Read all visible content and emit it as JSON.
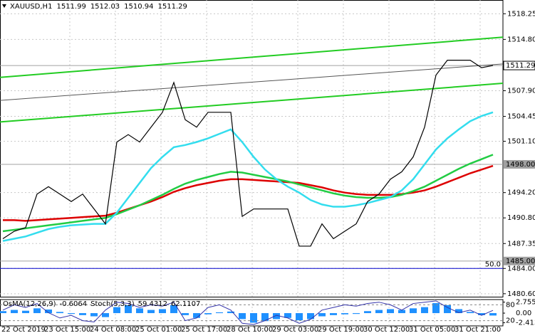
{
  "chart_data": {
    "type": "line",
    "title": "XAUUSD,H1",
    "ohlc": [
      1511.99,
      1512.03,
      1510.94,
      1511.29
    ],
    "categories": [
      "22 Oct 2019",
      null,
      null,
      null,
      "23 Oct 15:00",
      null,
      null,
      null,
      "24 Oct 08:00",
      null,
      null,
      null,
      "25 Oct 01:00",
      null,
      null,
      null,
      "25 Oct 17:00",
      null,
      null,
      null,
      "28 Oct 10:00",
      null,
      null,
      null,
      "29 Oct 03:00",
      null,
      null,
      null,
      "29 Oct 19:00",
      null,
      null,
      null,
      "30 Oct 12:00",
      null,
      null,
      null,
      "31 Oct 05:00",
      null,
      null,
      null,
      "31 Oct 21:00",
      null,
      null,
      null
    ],
    "series": [
      {
        "name": "XAUUSD",
        "color": "#000000",
        "values": [
          1488,
          1489,
          1489.5,
          1494,
          1495,
          1494,
          1493,
          1494,
          1492,
          1490,
          1501,
          1502,
          1501,
          1503,
          1505,
          1509,
          1504,
          1503,
          1505,
          1505,
          1505,
          1491,
          1492,
          1492,
          1492,
          1492,
          1487,
          1487,
          1490,
          1488,
          1489,
          1490,
          1493,
          1494,
          1496,
          1497,
          1499,
          1503,
          1510,
          1512,
          1512,
          1512,
          1511,
          1511.29
        ]
      },
      {
        "color": "#dd0000",
        "values": [
          1490.5,
          1490.5,
          1490.4,
          1490.5,
          1490.6,
          1490.7,
          1490.8,
          1490.9,
          1491.0,
          1491.1,
          1491.5,
          1492.0,
          1492.5,
          1493.0,
          1493.6,
          1494.3,
          1494.8,
          1495.2,
          1495.5,
          1495.8,
          1496.0,
          1496.0,
          1495.9,
          1495.8,
          1495.7,
          1495.6,
          1495.5,
          1495.2,
          1494.9,
          1494.5,
          1494.2,
          1494.0,
          1493.9,
          1493.9,
          1493.9,
          1494.0,
          1494.2,
          1494.5,
          1495.0,
          1495.6,
          1496.2,
          1496.8,
          1497.3,
          1497.8
        ]
      },
      {
        "color": "#22cc44",
        "values": [
          1489.0,
          1489.2,
          1489.4,
          1489.6,
          1489.8,
          1490.0,
          1490.2,
          1490.4,
          1490.6,
          1490.8,
          1491.3,
          1491.9,
          1492.5,
          1493.2,
          1493.9,
          1494.7,
          1495.4,
          1495.9,
          1496.3,
          1496.7,
          1497.0,
          1496.9,
          1496.6,
          1496.3,
          1496.0,
          1495.7,
          1495.3,
          1494.9,
          1494.5,
          1494.1,
          1493.8,
          1493.6,
          1493.5,
          1493.5,
          1493.6,
          1493.9,
          1494.4,
          1495.0,
          1495.8,
          1496.6,
          1497.4,
          1498.1,
          1498.7,
          1499.3
        ]
      },
      {
        "color": "#33ddee",
        "values": [
          1487.7,
          1488.0,
          1488.3,
          1488.8,
          1489.3,
          1489.6,
          1489.8,
          1489.9,
          1490.0,
          1490.0,
          1491.5,
          1493.5,
          1495.5,
          1497.5,
          1499.0,
          1500.3,
          1500.6,
          1501.0,
          1501.5,
          1502.1,
          1502.7,
          1501.0,
          1499.0,
          1497.3,
          1496.0,
          1495.0,
          1494.2,
          1493.2,
          1492.6,
          1492.3,
          1492.3,
          1492.5,
          1492.8,
          1493.2,
          1493.6,
          1494.5,
          1496.0,
          1498.0,
          1500.0,
          1501.5,
          1502.7,
          1503.8,
          1504.5,
          1505.0
        ]
      }
    ],
    "trendlines": [
      {
        "color": "#22cc22",
        "values": [
          1509.7,
          1515.1
        ]
      },
      {
        "color": "#555555",
        "values": [
          1506.6,
          1511.5
        ]
      },
      {
        "color": "#22cc22",
        "values": [
          1503.7,
          1508.9
        ]
      }
    ],
    "levels": [
      {
        "value": 1511.29
      },
      {
        "value": 1498,
        "label": "1498.00"
      },
      {
        "value": 1485,
        "label": "1485.00"
      }
    ],
    "fibo": {
      "name": "50.0",
      "value": 1484,
      "color": "#0000cc"
    },
    "ylim": [
      1480.2,
      1520.1
    ],
    "yticks": [
      1518.25,
      {
        "value": 1514.8,
        "label": "1514.80"
      },
      {
        "value": 1507.9,
        "label": "1507.90"
      },
      1504.45,
      {
        "value": 1501.1,
        "label": "1501.10"
      },
      {
        "value": 1494.2,
        "label": "1494.20"
      },
      {
        "value": 1490.8,
        "label": "1490.80"
      },
      1487.35,
      {
        "value": 1484,
        "label": "1484.00"
      },
      {
        "value": 1480.6,
        "label": "1480.60"
      }
    ],
    "grid": true,
    "oscillator": {
      "osma_name": "OsMA(12,26,9)",
      "osma_value": -0.6064,
      "stoch_name": "Stoch(5,3,3)",
      "stoch_values": [
        59.4312,
        62.1107
      ],
      "osma_color": "#1e90ff",
      "stoch_color": "#3333aa",
      "osma": [
        0.5,
        0.8,
        0.6,
        1.2,
        0.9,
        0.3,
        -0.2,
        -0.5,
        -0.8,
        -1.0,
        1.5,
        2.0,
        1.2,
        0.8,
        1.0,
        2.0,
        -0.5,
        -1.2,
        -0.3,
        0.2,
        0.4,
        -1.5,
        -2.4,
        -2.0,
        -1.5,
        -1.2,
        -1.8,
        -1.5,
        -0.8,
        -0.5,
        -0.3,
        -0.2,
        0.5,
        0.8,
        1.0,
        0.8,
        1.2,
        1.5,
        2.5,
        2.0,
        1.0,
        0.3,
        -0.5,
        -0.6
      ],
      "stoch": [
        60,
        80,
        70,
        85,
        50,
        30,
        40,
        20,
        15,
        60,
        90,
        85,
        70,
        80,
        75,
        90,
        20,
        30,
        70,
        80,
        60,
        10,
        5,
        20,
        40,
        30,
        10,
        25,
        60,
        70,
        80,
        75,
        85,
        90,
        80,
        60,
        85,
        90,
        95,
        70,
        50,
        60,
        40,
        59
      ],
      "osma_lim": [
        -3.2,
        3.4
      ],
      "osma_ticks": [
        2.7555,
        {
          "value": 0,
          "label": "0.00"
        },
        -2.4132
      ],
      "stoch_lim": [
        0,
        100
      ],
      "stoch_ticks": [
        80,
        20
      ]
    }
  }
}
